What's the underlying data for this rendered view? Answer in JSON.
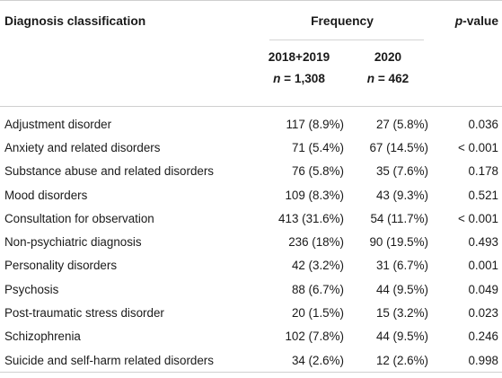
{
  "header": {
    "col_diagnosis": "Diagnosis classification",
    "col_frequency": "Frequency",
    "col_pvalue_p": "p",
    "col_pvalue_rest": "-value",
    "group1": {
      "label": "2018+2019",
      "n_prefix": "n",
      "n_eq": " = 1,308"
    },
    "group2": {
      "label": "2020",
      "n_prefix": "n",
      "n_eq": " = 462"
    }
  },
  "rows": [
    {
      "diagnosis": "Adjustment disorder",
      "g1": "117 (8.9%)",
      "g2": "27 (5.8%)",
      "p": "0.036"
    },
    {
      "diagnosis": "Anxiety and related disorders",
      "g1": "71 (5.4%)",
      "g2": "67 (14.5%)",
      "p": "< 0.001"
    },
    {
      "diagnosis": "Substance abuse and related disorders",
      "g1": "76 (5.8%)",
      "g2": "35 (7.6%)",
      "p": "0.178"
    },
    {
      "diagnosis": "Mood disorders",
      "g1": "109 (8.3%)",
      "g2": "43 (9.3%)",
      "p": "0.521"
    },
    {
      "diagnosis": "Consultation for observation",
      "g1": "413 (31.6%)",
      "g2": "54 (11.7%)",
      "p": "< 0.001"
    },
    {
      "diagnosis": "Non-psychiatric diagnosis",
      "g1": "236 (18%)",
      "g2": "90 (19.5%)",
      "p": "0.493"
    },
    {
      "diagnosis": "Personality disorders",
      "g1": "42 (3.2%)",
      "g2": "31 (6.7%)",
      "p": "0.001"
    },
    {
      "diagnosis": "Psychosis",
      "g1": "88 (6.7%)",
      "g2": "44 (9.5%)",
      "p": "0.049"
    },
    {
      "diagnosis": "Post-traumatic stress disorder",
      "g1": "20 (1.5%)",
      "g2": "15 (3.2%)",
      "p": "0.023"
    },
    {
      "diagnosis": "Schizophrenia",
      "g1": "102 (7.8%)",
      "g2": "44 (9.5%)",
      "p": "0.246"
    },
    {
      "diagnosis": "Suicide and self-harm related disorders",
      "g1": "34 (2.6%)",
      "g2": "12 (2.6%)",
      "p": "0.998"
    }
  ]
}
